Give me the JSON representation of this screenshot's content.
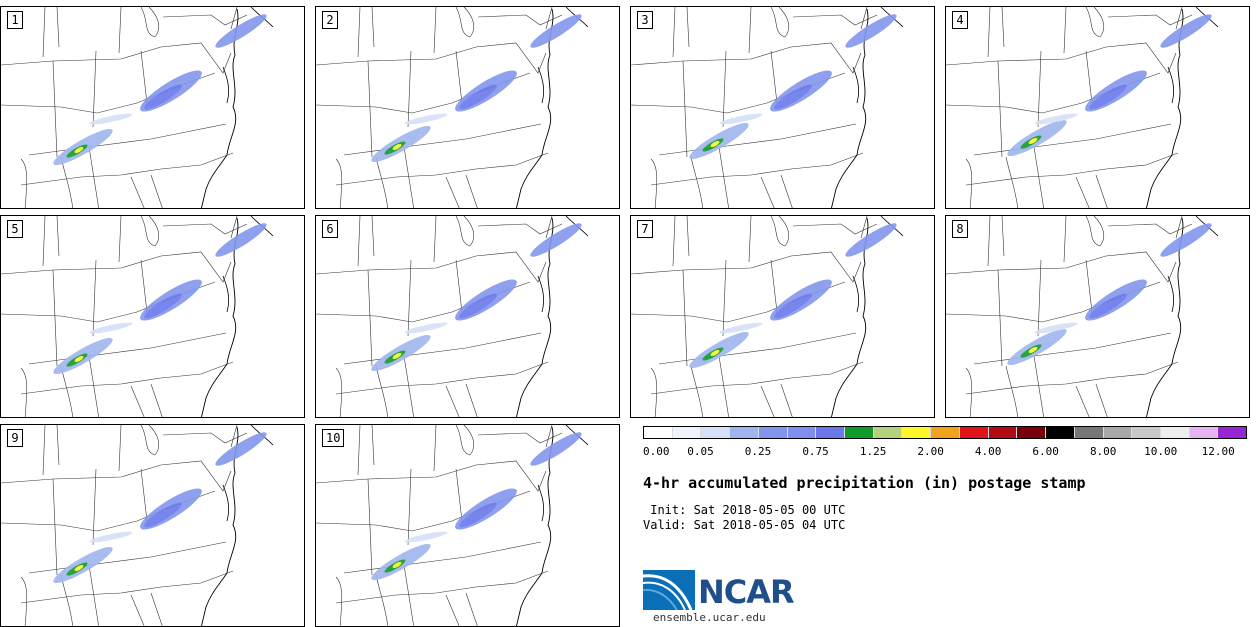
{
  "panels": [
    {
      "label": "1"
    },
    {
      "label": "2"
    },
    {
      "label": "3"
    },
    {
      "label": "4"
    },
    {
      "label": "5"
    },
    {
      "label": "6"
    },
    {
      "label": "7"
    },
    {
      "label": "8"
    },
    {
      "label": "9"
    },
    {
      "label": "10"
    }
  ],
  "colorbar": {
    "colors": [
      "#ffffff",
      "#eef4fb",
      "#d4e1f7",
      "#9fb5ee",
      "#8396ee",
      "#7e8ff0",
      "#6a78ea",
      "#0f9b2a",
      "#b5d17b",
      "#fdf62b",
      "#f3a21e",
      "#e0131a",
      "#b30b14",
      "#780008",
      "#000000",
      "#777777",
      "#a8a8a8",
      "#c8c8c8",
      "#eeeeee",
      "#e6b4f0",
      "#9725d6"
    ],
    "tick_labels": [
      "0.00",
      "0.05",
      "0.25",
      "0.75",
      "1.25",
      "2.00",
      "4.00",
      "6.00",
      "8.00",
      "10.00",
      "12.00"
    ]
  },
  "title": "4-hr accumulated precipitation (in) postage stamp",
  "init_line": " Init: Sat 2018-05-05 00 UTC",
  "valid_line": "Valid: Sat 2018-05-05 04 UTC",
  "logo": {
    "name": "NCAR",
    "url": "ensemble.ucar.edu"
  }
}
